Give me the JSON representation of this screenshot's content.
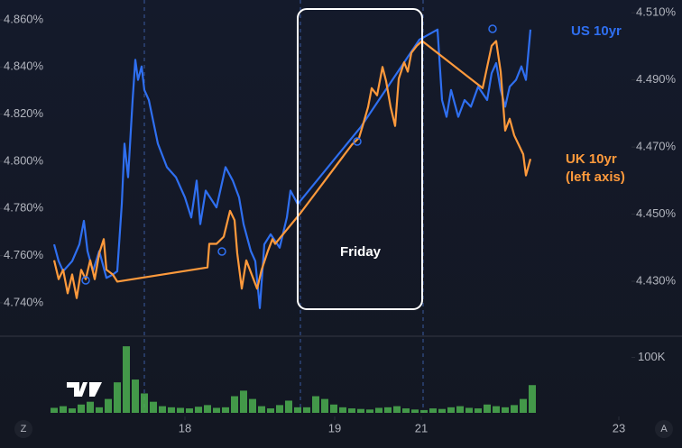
{
  "chart_data": {
    "type": "line",
    "xlim": [
      -6,
      64
    ],
    "xticks": [
      {
        "value": 14.5,
        "label": "18"
      },
      {
        "value": 31.1,
        "label": "19"
      },
      {
        "value": 40.7,
        "label": "21"
      },
      {
        "value": 62.6,
        "label": "23"
      }
    ],
    "ylim": [
      4.7262,
      4.8684
    ],
    "yticks": [
      {
        "value": 4.74,
        "label": "4.740%"
      },
      {
        "value": 4.76,
        "label": "4.760%"
      },
      {
        "value": 4.78,
        "label": "4.780%"
      },
      {
        "value": 4.8,
        "label": "4.800%"
      },
      {
        "value": 4.82,
        "label": "4.820%"
      },
      {
        "value": 4.84,
        "label": "4.840%"
      },
      {
        "value": 4.86,
        "label": "4.860%"
      }
    ],
    "y2lim": [
      4.4139,
      4.5138
    ],
    "y2ticks": [
      {
        "value": 4.43,
        "label": "4.430%"
      },
      {
        "value": 4.45,
        "label": "4.450%"
      },
      {
        "value": 4.47,
        "label": "4.470%"
      },
      {
        "value": 4.49,
        "label": "4.490%"
      },
      {
        "value": 4.51,
        "label": "4.510%"
      }
    ],
    "annotation": "Friday",
    "axis_note": "(left axis)",
    "series": [
      {
        "name": "US 10yr",
        "color": "#2f6ff0",
        "axis": "y2",
        "x": [
          0,
          0.5,
          1,
          2,
          2.8,
          3.3,
          3.7,
          4.3,
          5,
          5.8,
          6.5,
          7,
          7.5,
          7.8,
          8.2,
          8.7,
          9,
          9.3,
          9.7,
          10,
          10.5,
          11.5,
          12.5,
          13.5,
          14.5,
          15.2,
          15.8,
          16.2,
          16.8,
          18,
          19,
          19.8,
          20.5,
          21,
          21.8,
          22.3,
          22.8,
          23.3,
          24,
          25,
          25.8,
          26.2,
          27,
          34,
          40.5,
          42.5,
          43,
          43.5,
          44,
          44.8,
          45.5,
          46.2,
          47,
          48,
          48.5,
          49,
          49.5,
          50,
          50.5,
          51.2,
          51.8,
          52.3,
          52.6,
          52.8
        ],
        "values": [
          4.441,
          4.436,
          4.433,
          4.436,
          4.441,
          4.448,
          4.439,
          4.433,
          4.439,
          4.431,
          4.432,
          4.433,
          4.453,
          4.471,
          4.461,
          4.484,
          4.496,
          4.49,
          4.494,
          4.487,
          4.484,
          4.471,
          4.464,
          4.461,
          4.455,
          4.449,
          4.46,
          4.447,
          4.457,
          4.452,
          4.464,
          4.46,
          4.455,
          4.447,
          4.439,
          4.436,
          4.422,
          4.441,
          4.444,
          4.44,
          4.449,
          4.457,
          4.453,
          4.476,
          4.502,
          4.505,
          4.484,
          4.479,
          4.487,
          4.479,
          4.484,
          4.482,
          4.488,
          4.484,
          4.492,
          4.495,
          4.487,
          4.482,
          4.488,
          4.49,
          4.494,
          4.49,
          4.499,
          4.505
        ]
      },
      {
        "name": "UK 10yr",
        "color": "#ff9a3c",
        "x": [
          0,
          0.5,
          1,
          1.5,
          2,
          2.5,
          3,
          3.5,
          4,
          4.5,
          5,
          5.5,
          5.8,
          6.5,
          7,
          17,
          17.2,
          18,
          18.8,
          19.5,
          20,
          20.3,
          20.8,
          21.3,
          22,
          22.5,
          23,
          23.7,
          24.2,
          24.5,
          27.3,
          33,
          33.8,
          34.2,
          34.8,
          35.2,
          35.8,
          36.4,
          36.8,
          37.3,
          37.8,
          38.2,
          38.8,
          39.2,
          39.6,
          40.2,
          40.8,
          47.5,
          48,
          48.5,
          49,
          49.5,
          50,
          50.5,
          51,
          51.5,
          52,
          52.3,
          52.8
        ],
        "values": [
          4.758,
          4.75,
          4.754,
          4.744,
          4.752,
          4.742,
          4.754,
          4.75,
          4.758,
          4.75,
          4.761,
          4.767,
          4.754,
          4.752,
          4.749,
          4.755,
          4.765,
          4.765,
          4.768,
          4.779,
          4.775,
          4.761,
          4.746,
          4.758,
          4.751,
          4.746,
          4.754,
          4.762,
          4.767,
          4.765,
          4.778,
          4.807,
          4.81,
          4.815,
          4.823,
          4.831,
          4.828,
          4.84,
          4.834,
          4.823,
          4.815,
          4.835,
          4.842,
          4.838,
          4.846,
          4.849,
          4.851,
          4.831,
          4.84,
          4.849,
          4.851,
          4.838,
          4.813,
          4.818,
          4.811,
          4.807,
          4.803,
          4.794,
          4.801
        ]
      }
    ],
    "volume": {
      "color": "#4caf50",
      "ylim": [
        0,
        130000
      ],
      "yticks": [
        {
          "value": 100000,
          "label": "100K"
        }
      ],
      "x": [
        0,
        1,
        2,
        3,
        4,
        5,
        6,
        7,
        8,
        9,
        10,
        11,
        12,
        13,
        14,
        15,
        16,
        17,
        18,
        19,
        20,
        21,
        22,
        23,
        24,
        25,
        26,
        27,
        28,
        29,
        30,
        31,
        32,
        33,
        34,
        35,
        36,
        37,
        38,
        39,
        40,
        41,
        42,
        43,
        44,
        45,
        46,
        47,
        48,
        49,
        50,
        51,
        52,
        53
      ],
      "values": [
        9000,
        12000,
        8000,
        15000,
        20000,
        10000,
        25000,
        55000,
        120000,
        60000,
        35000,
        20000,
        12000,
        10000,
        9000,
        8000,
        11000,
        14000,
        9000,
        10000,
        30000,
        40000,
        25000,
        12000,
        8000,
        14000,
        22000,
        10000,
        10000,
        30000,
        25000,
        15000,
        10000,
        8000,
        7000,
        6000,
        9000,
        10000,
        12000,
        8000,
        6000,
        5000,
        8000,
        7000,
        10000,
        12000,
        9000,
        8000,
        15000,
        12000,
        10000,
        14000,
        25000,
        50000
      ]
    }
  },
  "ui": {
    "zoom": "Z",
    "auto": "A"
  }
}
